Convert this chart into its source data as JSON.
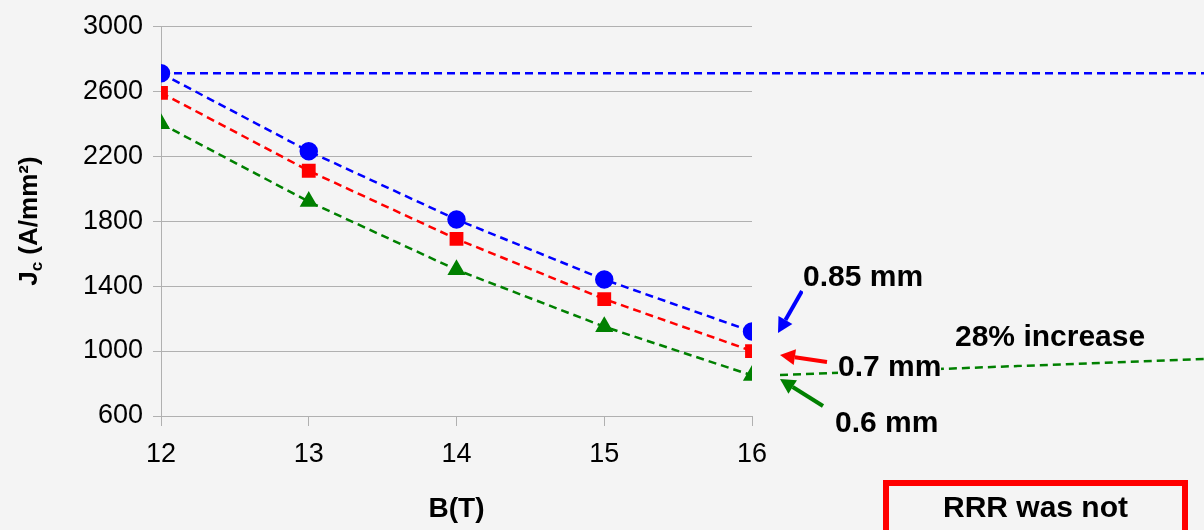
{
  "chart_data": {
    "type": "line",
    "xlabel": "B(T)",
    "ylabel": "J$_{c}$ (A/mm²)",
    "x": [
      12,
      13,
      14,
      15,
      16
    ],
    "series": [
      {
        "name": "0.85 mm",
        "color": "#0000ff",
        "marker": "circle",
        "line_style": "dashed",
        "values": [
          2710,
          2230,
          1810,
          1440,
          1120
        ]
      },
      {
        "name": "0.7 mm",
        "color": "#ff0000",
        "marker": "square",
        "line_style": "dashed",
        "values": [
          2590,
          2110,
          1690,
          1320,
          1000
        ]
      },
      {
        "name": "0.6 mm",
        "color": "#008000",
        "marker": "triangle",
        "line_style": "dashed",
        "values": [
          2400,
          1920,
          1500,
          1150,
          850
        ]
      }
    ],
    "xlim": [
      12,
      16
    ],
    "xticks": [
      12,
      13,
      14,
      15,
      16
    ],
    "ylim": [
      600,
      3000
    ],
    "yticks": [
      600,
      1000,
      1400,
      1800,
      2200,
      2600,
      3000
    ],
    "grid": "y",
    "legend": "right",
    "ref_lines": [
      {
        "axis": "y",
        "value": 2710,
        "color": "#0000ff",
        "line_style": "dashed"
      }
    ],
    "annotations": [
      "28% increase",
      "RRR was not"
    ]
  }
}
